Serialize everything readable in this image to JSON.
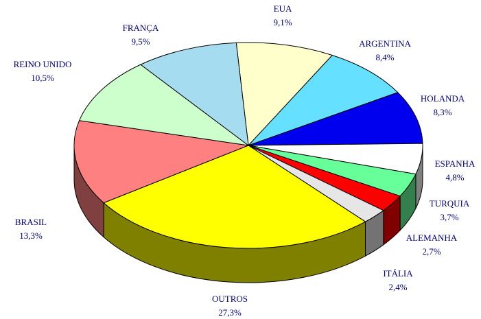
{
  "chart_data": {
    "type": "pie3d",
    "categories": [
      "EUA",
      "ARGENTINA",
      "HOLANDA",
      "ESPANHA",
      "TURQUIA",
      "ALEMANHA",
      "ITÁLIA",
      "OUTROS",
      "BRASIL",
      "REINO UNIDO",
      "FRANÇA"
    ],
    "values": [
      9.1,
      8.4,
      8.3,
      4.8,
      3.7,
      2.7,
      2.4,
      27.3,
      13.3,
      10.5,
      9.5
    ],
    "value_labels": [
      "9,1%",
      "8,4%",
      "8,3%",
      "4,8%",
      "3,7%",
      "2,7%",
      "2,4%",
      "27,3%",
      "13,3%",
      "10,5%",
      "9,5%"
    ],
    "colors": [
      "#ffffcc",
      "#66e0ff",
      "#0000ee",
      "#ffffff",
      "#66ff99",
      "#ff0000",
      "#e6e6e6",
      "#ffff00",
      "#ff8080",
      "#ccffcc",
      "#a6dcf0"
    ]
  }
}
